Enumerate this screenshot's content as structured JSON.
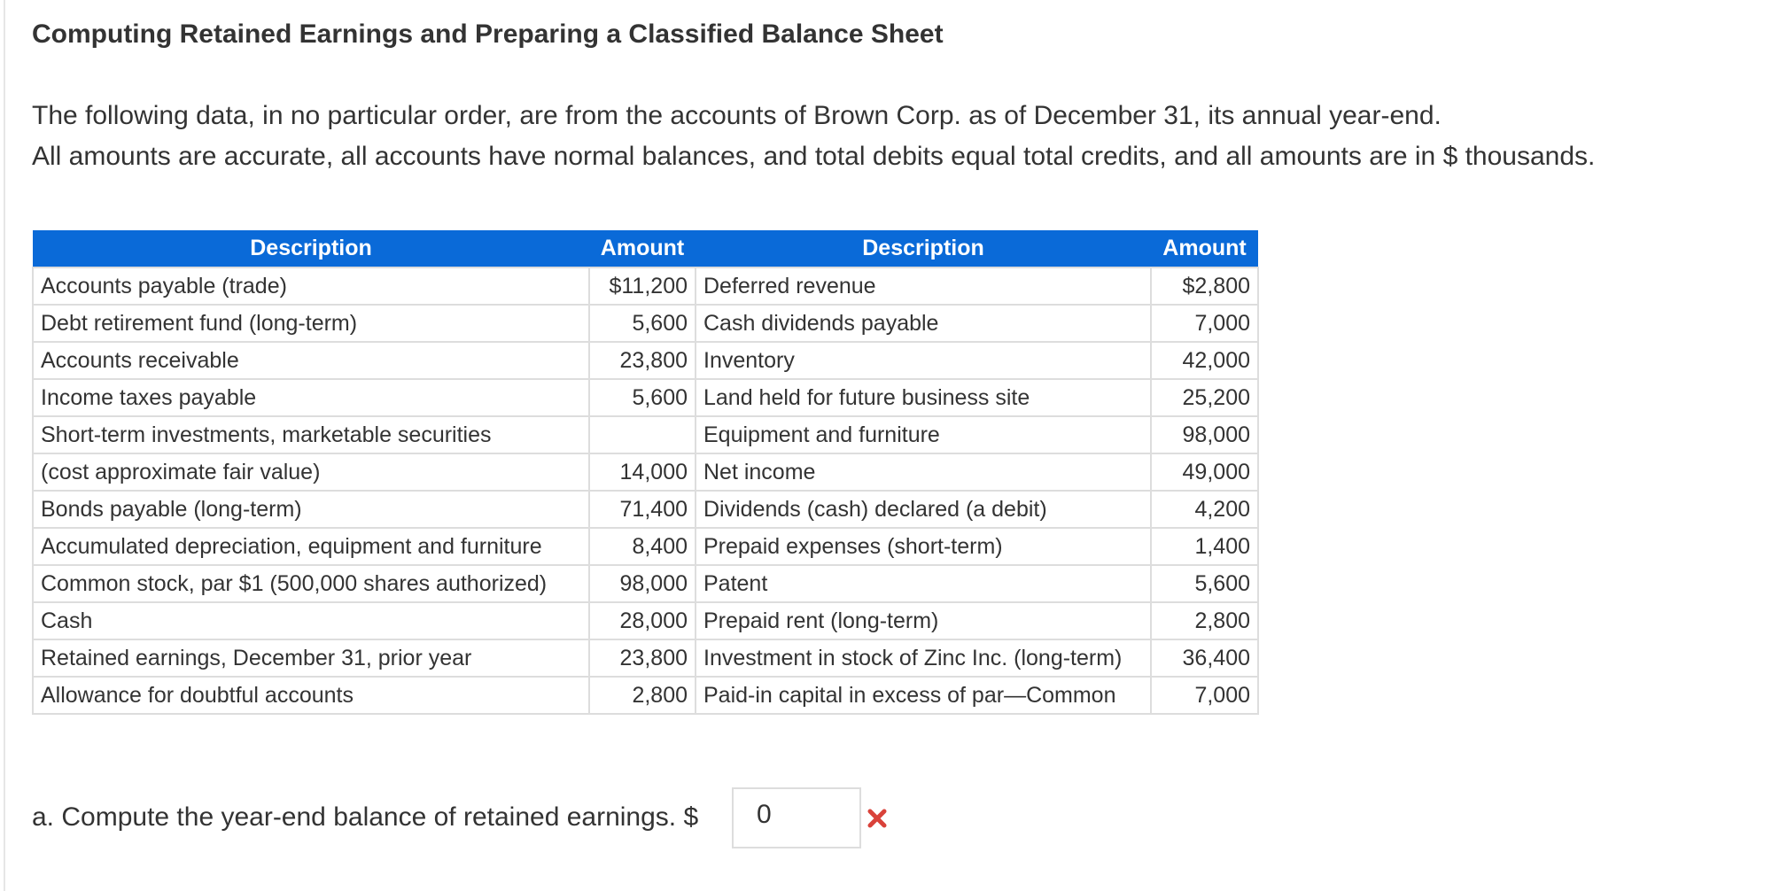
{
  "header": {
    "title": "Computing Retained Earnings and Preparing a Classified Balance Sheet"
  },
  "intro": [
    "The following data, in no particular order, are from the accounts of Brown Corp. as of December 31, its annual year-end.",
    "All amounts are accurate, all accounts have normal balances, and total debits equal total credits, and all amounts are in $ thousands."
  ],
  "table": {
    "columns": [
      "Description",
      "Amount",
      "Description",
      "Amount"
    ],
    "rows": [
      [
        "Accounts payable (trade)",
        "$11,200",
        "Deferred revenue",
        "$2,800"
      ],
      [
        "Debt retirement fund (long-term)",
        "5,600",
        "Cash dividends payable",
        "7,000"
      ],
      [
        "Accounts receivable",
        "23,800",
        "Inventory",
        "42,000"
      ],
      [
        "Income taxes payable",
        "5,600",
        "Land held for future business site",
        "25,200"
      ],
      [
        "Short-term investments, marketable securities",
        null,
        "Equipment and furniture",
        "98,000"
      ],
      [
        "(cost approximate fair value)",
        "14,000",
        "Net income",
        "49,000"
      ],
      [
        "Bonds payable (long-term)",
        "71,400",
        "Dividends (cash) declared (a debit)",
        "4,200"
      ],
      [
        "Accumulated depreciation, equipment and furniture",
        "8,400",
        "Prepaid expenses (short-term)",
        "1,400"
      ],
      [
        "Common stock, par $1 (500,000 shares authorized)",
        "98,000",
        "Patent",
        "5,600"
      ],
      [
        "Cash",
        "28,000",
        "Prepaid rent (long-term)",
        "2,800"
      ],
      [
        "Retained earnings, December 31, prior year",
        "23,800",
        "Investment in stock of Zinc Inc. (long-term)",
        "36,400"
      ],
      [
        "Allowance for doubtful accounts",
        "2,800",
        "Paid-in capital in excess of par—Common",
        "7,000"
      ]
    ]
  },
  "question": {
    "text": "a. Compute the year-end balance of retained earnings. $",
    "answer": "0"
  }
}
